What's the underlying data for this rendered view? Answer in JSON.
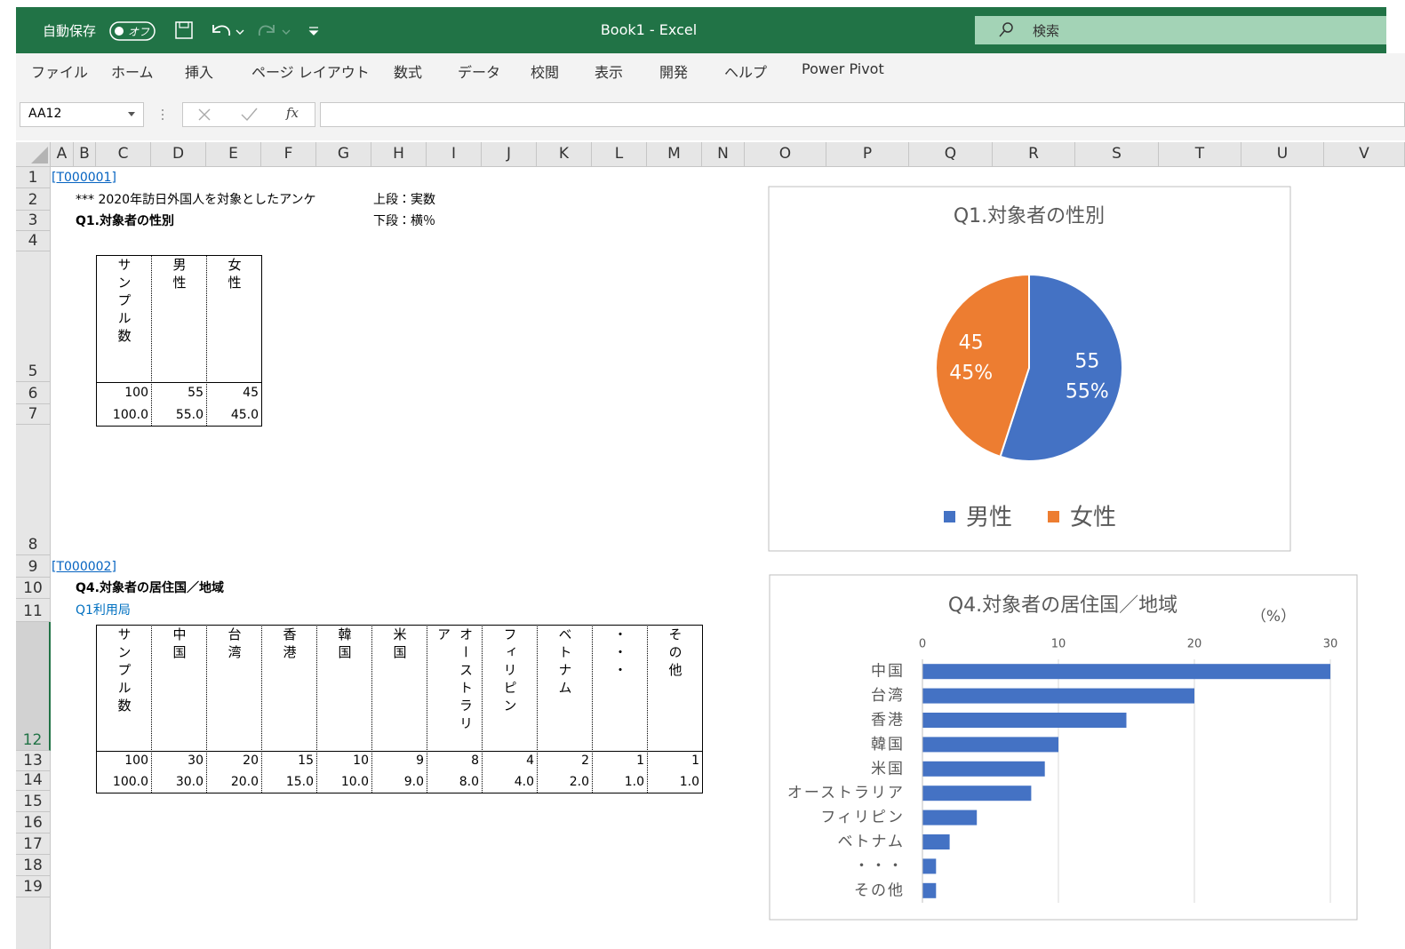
{
  "titlebar": {
    "autosave": "自動保存",
    "toggle": "オフ",
    "title": "Book1 - Excel",
    "search": "検索"
  },
  "ribbon": {
    "tabs": [
      "ファイル",
      "ホーム",
      "挿入",
      "ページ レイアウト",
      "数式",
      "データ",
      "校閲",
      "表示",
      "開発",
      "ヘルプ",
      "Power Pivot"
    ]
  },
  "formula_bar": {
    "name_box": "AA12",
    "fx_label": "fx"
  },
  "columns": [
    "A",
    "B",
    "C",
    "D",
    "E",
    "F",
    "G",
    "H",
    "I",
    "J",
    "K",
    "L",
    "M",
    "N",
    "O",
    "P",
    "Q",
    "R",
    "S",
    "T",
    "U",
    "V"
  ],
  "rows": [
    1,
    2,
    3,
    4,
    5,
    6,
    7,
    8,
    9,
    10,
    11,
    12,
    13,
    14,
    15,
    16,
    17,
    18,
    19
  ],
  "sheet": {
    "t1_link": "[T000001]",
    "t1_caption": "*** 2020年訪日外国人を対象としたアンケ",
    "t1_note_top": "上段：実数",
    "t1_question": "Q1.対象者の性別",
    "t1_note_bottom": "下段：横％",
    "table1": {
      "headers": [
        "サンプル数",
        "男性",
        "女性"
      ],
      "counts": [
        100,
        55,
        45
      ],
      "percents": [
        "100.0",
        "55.0",
        "45.0"
      ]
    },
    "t2_link": "[T000002]",
    "t2_question": "Q4.対象者の居住国／地域",
    "t2_sub": "Q1利用局",
    "table2": {
      "headers": [
        "サンプル数",
        "中国",
        "台湾",
        "香港",
        "韓国",
        "米国",
        "オーストラリア",
        "フィリピン",
        "ベトナム",
        "・・・",
        "その他"
      ],
      "counts": [
        100,
        30,
        20,
        15,
        10,
        9,
        8,
        4,
        2,
        1,
        1
      ],
      "percents": [
        "100.0",
        "30.0",
        "20.0",
        "15.0",
        "10.0",
        "9.0",
        "8.0",
        "4.0",
        "2.0",
        "1.0",
        "1.0"
      ]
    }
  },
  "chart_data": [
    {
      "type": "pie",
      "title": "Q1.対象者の性別",
      "categories": [
        "男性",
        "女性"
      ],
      "values": [
        55,
        45
      ],
      "value_labels": [
        "55%",
        "45%"
      ],
      "colors": [
        "#4472c4",
        "#ed7d31"
      ],
      "legend": "bottom"
    },
    {
      "type": "bar",
      "orientation": "horizontal",
      "title": "Q4.対象者の居住国／地域",
      "unit_label": "（%）",
      "categories": [
        "中国",
        "台湾",
        "香港",
        "韓国",
        "米国",
        "オーストラリア",
        "フィリピン",
        "ベトナム",
        "・・・",
        "その他"
      ],
      "values": [
        30,
        20,
        15,
        10,
        9,
        8,
        4,
        2,
        1,
        1
      ],
      "color": "#4472c4",
      "xlim": [
        0,
        30
      ],
      "xticks": [
        0,
        10,
        20,
        30
      ],
      "grid": true
    }
  ]
}
